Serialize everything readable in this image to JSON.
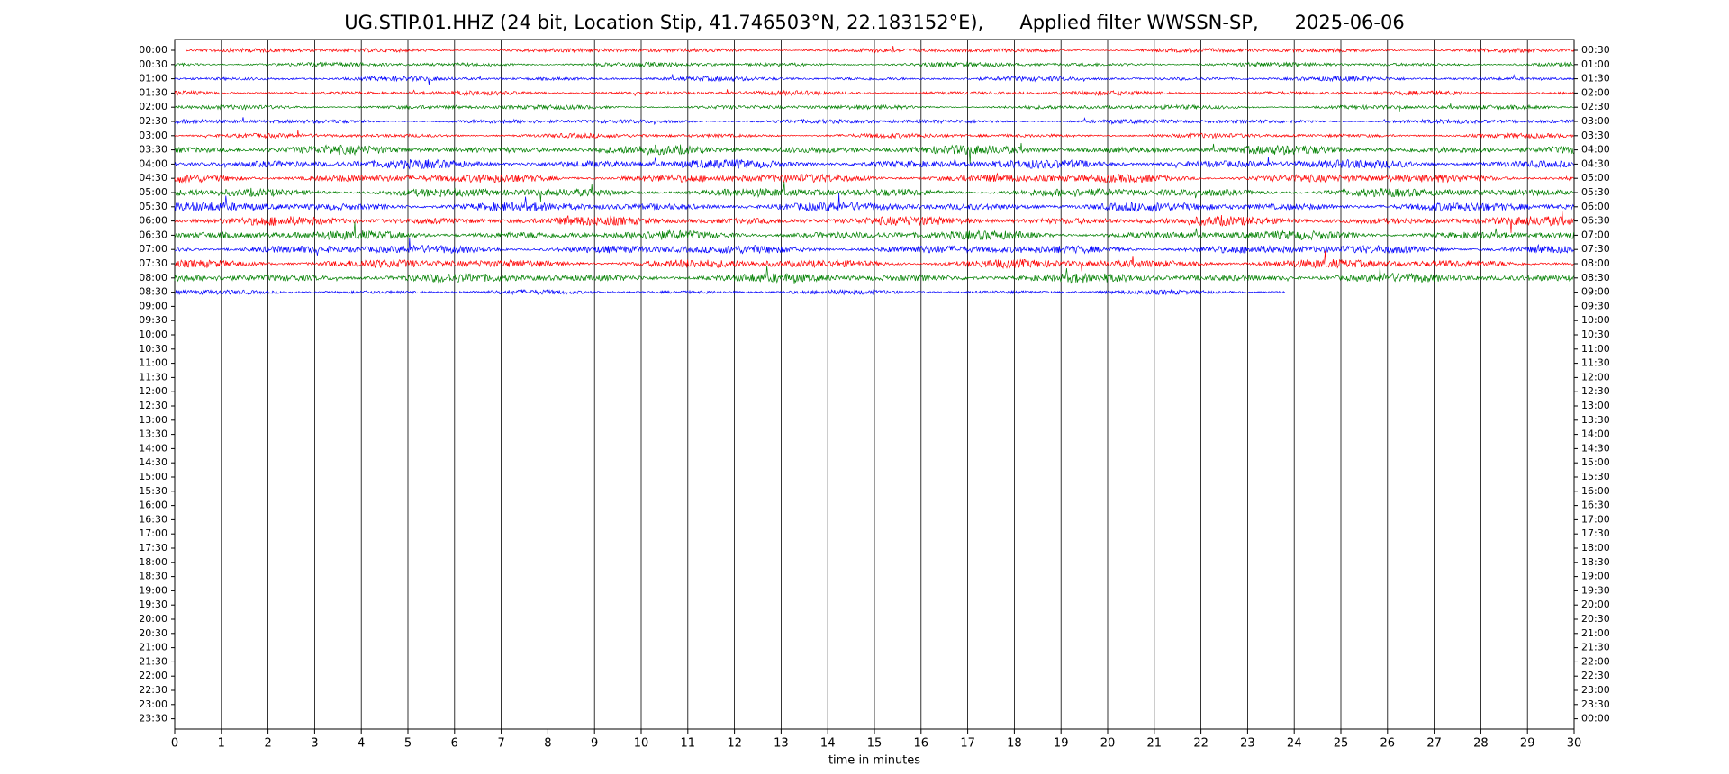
{
  "chart_data": {
    "type": "helicorder",
    "title": "UG.STIP.01.HHZ (24 bit, Location Stip, 41.746503°N, 22.183152°E),      Applied filter WWSSN-SP,      2025-06-06",
    "xlabel": "time in minutes",
    "xlim": [
      0,
      30
    ],
    "xticks": [
      0,
      1,
      2,
      3,
      4,
      5,
      6,
      7,
      8,
      9,
      10,
      11,
      12,
      13,
      14,
      15,
      16,
      17,
      18,
      19,
      20,
      21,
      22,
      23,
      24,
      25,
      26,
      27,
      28,
      29,
      30
    ],
    "grid": true,
    "left_labels": [
      "00:00",
      "00:30",
      "01:00",
      "01:30",
      "02:00",
      "02:30",
      "03:00",
      "03:30",
      "04:00",
      "04:30",
      "05:00",
      "05:30",
      "06:00",
      "06:30",
      "07:00",
      "07:30",
      "08:00",
      "08:30",
      "09:00",
      "09:30",
      "10:00",
      "10:30",
      "11:00",
      "11:30",
      "12:00",
      "12:30",
      "13:00",
      "13:30",
      "14:00",
      "14:30",
      "15:00",
      "15:30",
      "16:00",
      "16:30",
      "17:00",
      "17:30",
      "18:00",
      "18:30",
      "19:00",
      "19:30",
      "20:00",
      "20:30",
      "21:00",
      "21:30",
      "22:00",
      "22:30",
      "23:00",
      "23:30"
    ],
    "right_labels": [
      "00:30",
      "01:00",
      "01:30",
      "02:00",
      "02:30",
      "03:00",
      "03:30",
      "04:00",
      "04:30",
      "05:00",
      "05:30",
      "06:00",
      "06:30",
      "07:00",
      "07:30",
      "08:00",
      "08:30",
      "09:00",
      "09:30",
      "10:00",
      "10:30",
      "11:00",
      "11:30",
      "12:00",
      "12:30",
      "13:00",
      "13:30",
      "14:00",
      "14:30",
      "15:00",
      "15:30",
      "16:00",
      "16:30",
      "17:00",
      "17:30",
      "18:00",
      "18:30",
      "19:00",
      "19:30",
      "20:00",
      "20:30",
      "21:00",
      "21:30",
      "22:00",
      "22:30",
      "23:00",
      "23:30",
      "00:00"
    ],
    "traces": [
      {
        "color": "#ff0000",
        "start": 0.25,
        "end": 30
      },
      {
        "color": "#008000",
        "start": 0,
        "end": 30
      },
      {
        "color": "#0000ff",
        "start": 0,
        "end": 30
      },
      {
        "color": "#ff0000",
        "start": 0,
        "end": 30
      },
      {
        "color": "#008000",
        "start": 0,
        "end": 30
      },
      {
        "color": "#0000ff",
        "start": 0,
        "end": 30
      },
      {
        "color": "#ff0000",
        "start": 0,
        "end": 30
      },
      {
        "color": "#008000",
        "start": 0,
        "end": 30
      },
      {
        "color": "#0000ff",
        "start": 0,
        "end": 30
      },
      {
        "color": "#ff0000",
        "start": 0,
        "end": 30
      },
      {
        "color": "#008000",
        "start": 0,
        "end": 30
      },
      {
        "color": "#0000ff",
        "start": 0,
        "end": 30
      },
      {
        "color": "#ff0000",
        "start": 0,
        "end": 30
      },
      {
        "color": "#008000",
        "start": 0,
        "end": 30
      },
      {
        "color": "#0000ff",
        "start": 0,
        "end": 30
      },
      {
        "color": "#ff0000",
        "start": 0,
        "end": 30
      },
      {
        "color": "#008000",
        "start": 0,
        "end": 30
      },
      {
        "color": "#0000ff",
        "start": 0,
        "end": 23.8
      }
    ]
  }
}
